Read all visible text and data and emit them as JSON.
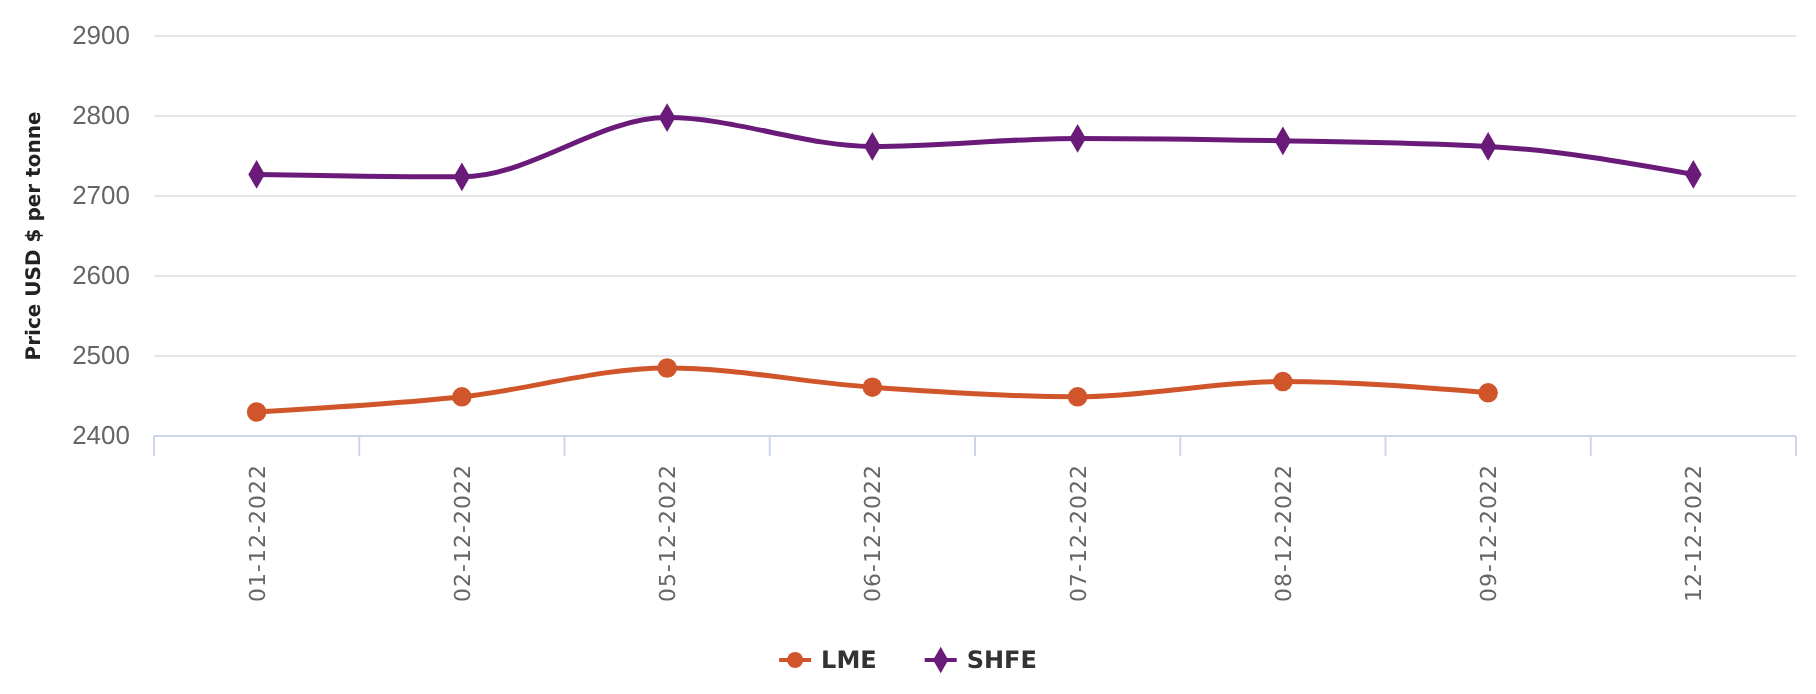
{
  "chart_data": {
    "type": "line",
    "ylabel": "Price USD $ per tonne",
    "categories": [
      "01-12-2022",
      "02-12-2022",
      "05-12-2022",
      "06-12-2022",
      "07-12-2022",
      "08-12-2022",
      "09-12-2022",
      "12-12-2022"
    ],
    "series": [
      {
        "name": "LME",
        "color": "#d0552a",
        "marker": "circle",
        "values": [
          2430,
          2449,
          2485,
          2461,
          2449,
          2468,
          2454,
          null
        ]
      },
      {
        "name": "SHFE",
        "color": "#6a1b7a",
        "marker": "diamond",
        "values": [
          2727,
          2724,
          2798,
          2762,
          2772,
          2769,
          2762,
          2727
        ]
      }
    ],
    "ylim": [
      2400,
      2900
    ],
    "yticks": [
      2400,
      2500,
      2600,
      2700,
      2800,
      2900
    ],
    "grid": "y",
    "legend": "bottom"
  }
}
